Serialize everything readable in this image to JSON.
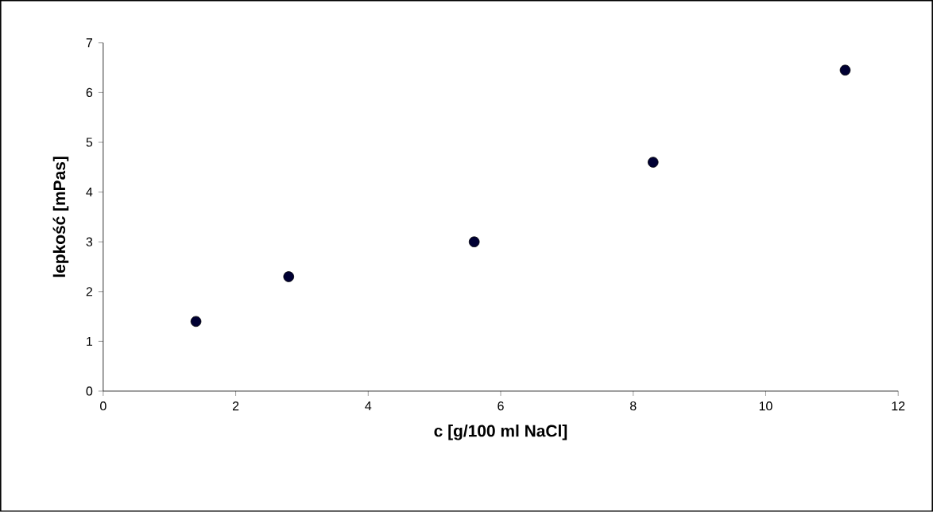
{
  "chart_data": {
    "type": "scatter",
    "xlabel": "c [g/100 ml NaCl]",
    "ylabel": "lepkość [mPas]",
    "x": [
      1.4,
      2.8,
      5.6,
      8.3,
      11.2
    ],
    "series": [
      {
        "color": "#000033",
        "values": [
          1.4,
          2.3,
          3.0,
          4.6,
          6.45
        ]
      }
    ],
    "xlim": [
      0,
      12
    ],
    "xticks": [
      0,
      2,
      4,
      6,
      8,
      10,
      12
    ],
    "ylim": [
      0,
      7
    ],
    "yticks": [
      0,
      1,
      2,
      3,
      4,
      5,
      6,
      7
    ],
    "marker": "circle",
    "grid": false,
    "legend": false
  }
}
